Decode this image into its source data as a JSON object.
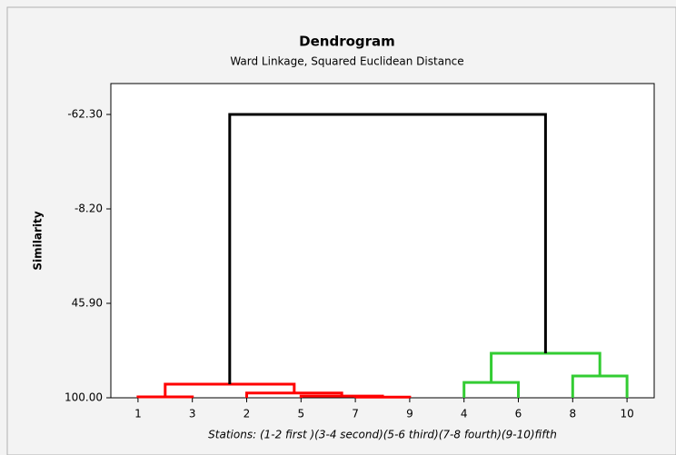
{
  "chart_data": {
    "type": "dendrogram",
    "title": "Dendrogram",
    "subtitle": "Ward Linkage, Squared Euclidean Distance",
    "y_label": "Similarity",
    "x_label": "Stations: (1-2 first )(3-4 second)(5-6 third)(7-8 fourth)(9-10)fifth",
    "categories": [
      "1",
      "3",
      "2",
      "5",
      "7",
      "9",
      "4",
      "6",
      "8",
      "10"
    ],
    "merges": [
      {
        "left": 0,
        "right": 1,
        "height": 99.5,
        "color": "#ff0000"
      },
      {
        "left": 4,
        "right": 5,
        "height": 99.6,
        "color": "#ff0000"
      },
      {
        "left": 3,
        "right": 11,
        "height": 99.0,
        "color": "#ff0000"
      },
      {
        "left": 2,
        "right": 12,
        "height": 97.3,
        "color": "#ff0000"
      },
      {
        "left": 10,
        "right": 13,
        "height": 92.2,
        "color": "#ff0000"
      },
      {
        "left": 6,
        "right": 7,
        "height": 91.2,
        "color": "#33cc33"
      },
      {
        "left": 8,
        "right": 9,
        "height": 87.5,
        "color": "#33cc33"
      },
      {
        "left": 15,
        "right": 16,
        "height": 74.5,
        "color": "#33cc33"
      },
      {
        "left": 14,
        "right": 17,
        "height": -62.3,
        "color": "#000000"
      }
    ],
    "ylim": [
      100,
      -80
    ],
    "yticks": [
      {
        "value": -62.3,
        "label": "-62.30"
      },
      {
        "value": -8.2,
        "label": "-8.20"
      },
      {
        "value": 45.9,
        "label": "45.90"
      },
      {
        "value": 100,
        "label": "100.00"
      }
    ]
  }
}
